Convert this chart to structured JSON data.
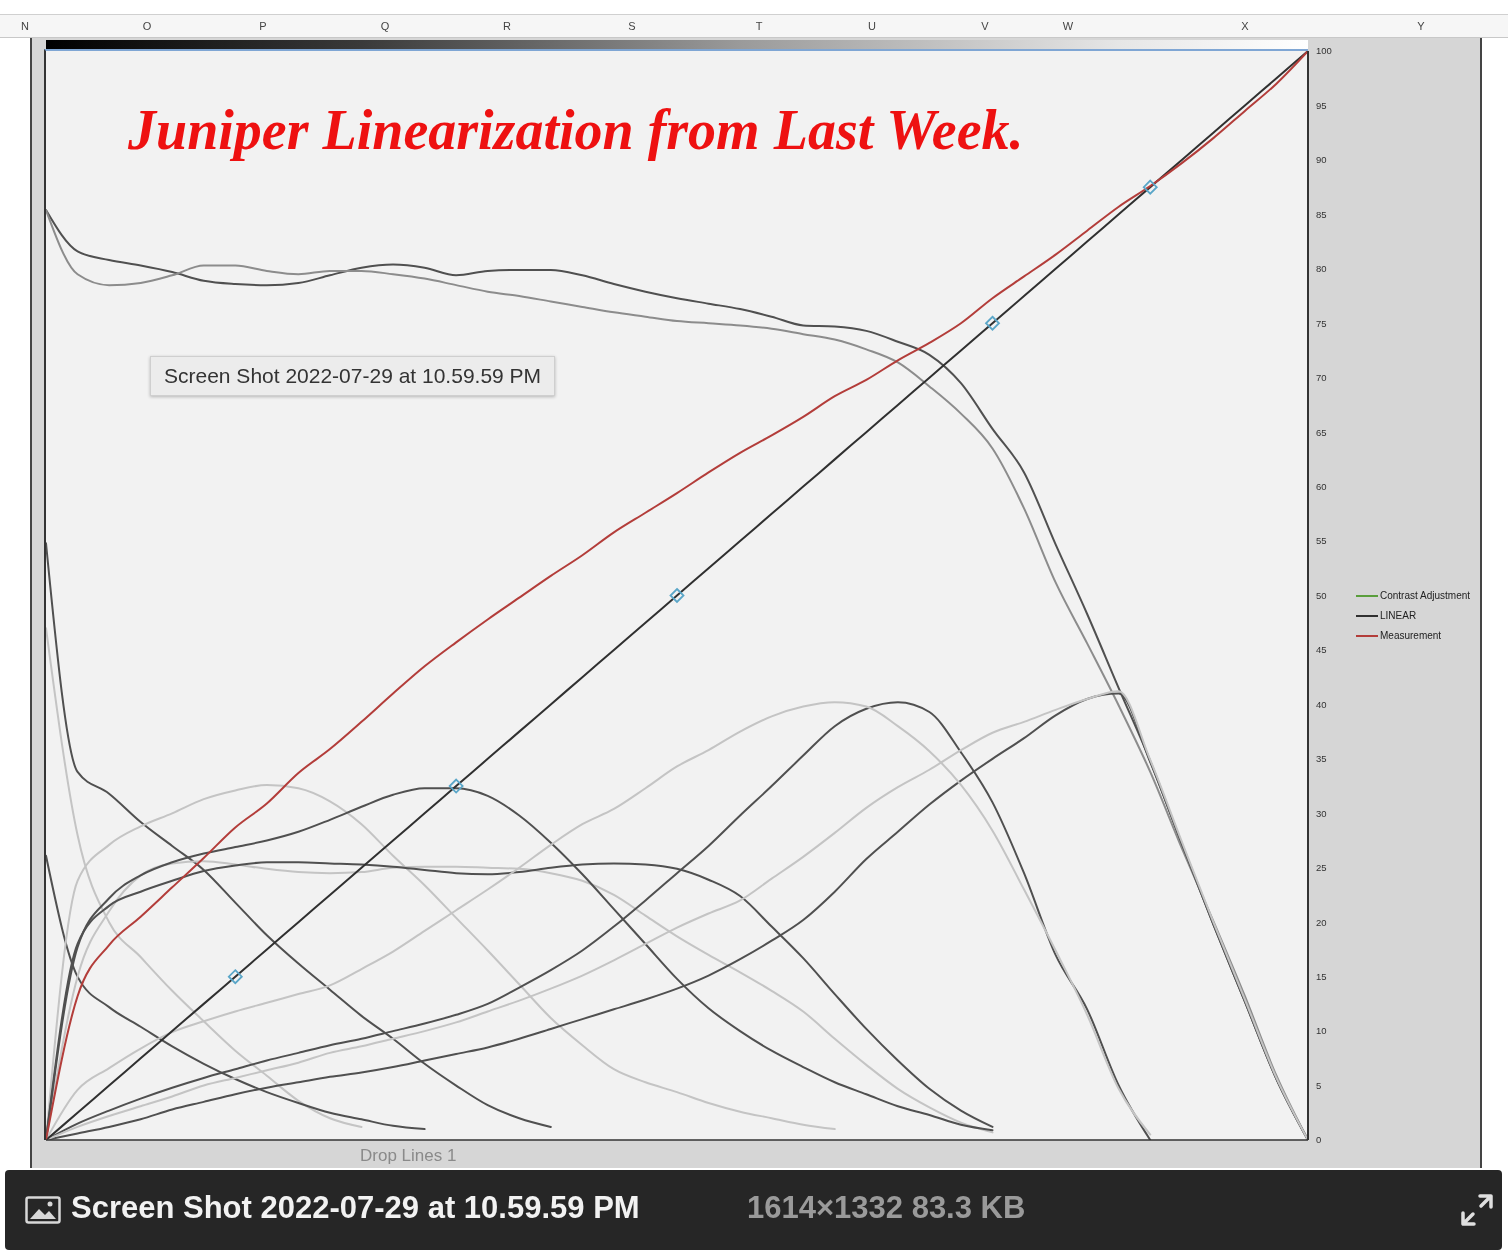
{
  "chart_data": {
    "type": "line",
    "title": "Juniper Linearization from Last Week.",
    "categories": [
      null,
      null,
      null,
      null,
      null,
      null,
      null,
      null,
      null,
      null,
      null,
      null,
      null,
      null,
      null,
      null,
      null,
      null,
      null,
      null,
      null,
      null,
      null,
      null,
      null,
      null,
      null,
      null,
      null,
      null,
      null,
      null,
      null,
      null,
      null,
      null,
      null,
      null,
      null,
      null,
      null
    ],
    "ylim": [
      0,
      100
    ],
    "yticks": [
      0,
      5,
      10,
      15,
      20,
      25,
      30,
      35,
      40,
      45,
      50,
      55,
      60,
      65,
      70,
      75,
      80,
      85,
      90,
      95,
      100
    ],
    "tick_labels": "y",
    "marker": "none",
    "legend": "right",
    "series": [
      {
        "color": "#505050",
        "values": [
          85.4,
          81.6,
          80.8,
          80.3,
          79.7,
          78.9,
          78.6,
          78.5,
          78.7,
          79.4,
          80.1,
          80.4,
          80.1,
          79.4,
          79.8,
          79.9,
          79.9,
          79.4,
          78.6,
          77.9,
          77.3,
          76.8,
          76.3,
          75.6,
          74.8,
          74.7,
          74.3,
          73.3,
          72.1,
          69.5,
          65.3,
          61.3,
          54.7,
          48.3,
          41.5,
          34.8,
          27.2,
          19.8,
          12.7,
          5.6,
          0
        ]
      },
      {
        "color": "#8c8c8c",
        "values": [
          85.4,
          79.5,
          78.5,
          78.7,
          79.4,
          80.3,
          80.3,
          79.8,
          79.5,
          79.8,
          79.8,
          79.5,
          79.1,
          78.5,
          77.9,
          77.5,
          77,
          76.5,
          76,
          75.6,
          75.2,
          75,
          74.8,
          74.5,
          74,
          73.5,
          72.6,
          71.4,
          69.2,
          66.7,
          63.5,
          58,
          51.2,
          45.6,
          39.9,
          33.8,
          26.8,
          20.1,
          13.2,
          5.9,
          0
        ]
      },
      {
        "color": "#505050",
        "values": [
          54.8,
          33.8,
          31.8,
          29.2,
          27,
          24.8,
          21.8,
          18.8,
          16.2,
          13.8,
          11.4,
          9.3,
          7,
          5,
          3.2,
          2,
          1.2,
          null,
          null,
          null,
          null,
          null,
          null,
          null,
          null,
          null,
          null,
          null,
          null,
          null,
          null,
          null,
          null,
          null,
          null,
          null,
          null,
          null,
          null,
          null,
          null
        ]
      },
      {
        "color": "#c4c4c4",
        "values": [
          47,
          28,
          20,
          16.8,
          13.7,
          10.9,
          8.2,
          5.9,
          3.6,
          2,
          1.2,
          null,
          null,
          null,
          null,
          null,
          null,
          null,
          null,
          null,
          null,
          null,
          null,
          null,
          null,
          null,
          null,
          null,
          null,
          null,
          null,
          null,
          null,
          null,
          null,
          null,
          null,
          null,
          null,
          null,
          null
        ]
      },
      {
        "color": "#505050",
        "values": [
          26.1,
          15,
          12.2,
          10.4,
          8.6,
          7,
          5.6,
          4.4,
          3.4,
          2.5,
          1.9,
          1.3,
          1,
          null,
          null,
          null,
          null,
          null,
          null,
          null,
          null,
          null,
          null,
          null,
          null,
          null,
          null,
          null,
          null,
          null,
          null,
          null,
          null,
          null,
          null,
          null,
          null,
          null,
          null,
          null,
          null
        ]
      },
      {
        "color": "#c4c4c4",
        "values": [
          0,
          23.8,
          27.1,
          28.8,
          30,
          31.3,
          32.1,
          32.6,
          32.3,
          31.1,
          29,
          26.1,
          23.4,
          20.4,
          17.4,
          14.3,
          11.2,
          8.7,
          6.5,
          5.3,
          4.4,
          3.4,
          2.6,
          2,
          1.4,
          1,
          null,
          null,
          null,
          null,
          null,
          null,
          null,
          null,
          null,
          null,
          null,
          null,
          null,
          null,
          null
        ]
      },
      {
        "color": "#c4c4c4",
        "values": [
          0,
          15,
          21,
          24.3,
          25.4,
          25.6,
          25.3,
          24.9,
          24.6,
          24.5,
          24.6,
          25,
          25.1,
          25.1,
          25,
          24.9,
          24.5,
          23.8,
          22.5,
          20.6,
          18.7,
          17,
          15.4,
          13.7,
          11.8,
          9.3,
          6.9,
          4.7,
          3,
          1.6,
          0.7,
          null,
          null,
          null,
          null,
          null,
          null,
          null,
          null,
          null,
          null
        ]
      },
      {
        "color": "#505050",
        "values": [
          0,
          17.7,
          22.2,
          24.3,
          25.5,
          26.3,
          26.9,
          27.5,
          28.3,
          29.4,
          30.6,
          31.7,
          32.3,
          32.3,
          31.6,
          29.8,
          27.3,
          24.4,
          21.2,
          18,
          14.8,
          12.1,
          10,
          8.2,
          6.7,
          5.3,
          4.2,
          3.1,
          2.3,
          1.4,
          0.9,
          null,
          null,
          null,
          null,
          null,
          null,
          null,
          null,
          null,
          null
        ]
      },
      {
        "color": "#505050",
        "values": [
          0,
          18,
          21.5,
          22.8,
          23.8,
          24.7,
          25.2,
          25.5,
          25.5,
          25.4,
          25.3,
          25.1,
          24.8,
          24.5,
          24.4,
          24.6,
          25,
          25.3,
          25.4,
          25.3,
          24.9,
          23.9,
          22.4,
          19.6,
          16.7,
          13.4,
          10.2,
          7.3,
          4.7,
          2.7,
          1.2,
          null,
          null,
          null,
          null,
          null,
          null,
          null,
          null,
          null,
          null
        ]
      },
      {
        "color": "#505050",
        "values": [
          0,
          1.5,
          2.7,
          3.8,
          4.8,
          5.7,
          6.5,
          7.3,
          8,
          8.7,
          9.3,
          10,
          10.7,
          11.5,
          12.5,
          14,
          15.6,
          17.4,
          19.6,
          22,
          24.5,
          27,
          29.8,
          32.5,
          35.3,
          38,
          39.6,
          40.2,
          39.3,
          35.6,
          31,
          24.5,
          17,
          12,
          5,
          0,
          null,
          null,
          null,
          null,
          null
        ]
      },
      {
        "color": "#505050",
        "values": [
          0,
          0.6,
          1.2,
          1.9,
          2.8,
          3.5,
          4.2,
          4.8,
          5.3,
          5.8,
          6.2,
          6.7,
          7.3,
          7.9,
          8.5,
          9.3,
          10.2,
          11.1,
          12,
          12.9,
          13.9,
          15.1,
          16.6,
          18.3,
          20.2,
          22.8,
          25.8,
          28.3,
          30.8,
          33,
          35,
          36.9,
          39,
          40.5,
          41,
          34.7,
          27.2,
          19.8,
          12.7,
          5.6,
          0
        ]
      },
      {
        "color": "#c4c4c4",
        "values": [
          0,
          4.6,
          6.6,
          8.4,
          9.9,
          10.9,
          11.8,
          12.6,
          13.4,
          14.2,
          15.7,
          17.3,
          19.2,
          21.1,
          23,
          25,
          27.1,
          29,
          30.4,
          32.3,
          34.3,
          35.8,
          37.5,
          38.9,
          39.8,
          40.2,
          39.8,
          38,
          35.7,
          32.6,
          28.4,
          23,
          17.4,
          11.5,
          4.7,
          0.5,
          null,
          null,
          null,
          null,
          null
        ]
      },
      {
        "color": "#c4c4c4",
        "values": [
          0,
          1.2,
          2.2,
          3.1,
          4,
          5,
          5.7,
          6.4,
          7.1,
          8,
          8.6,
          9.3,
          10,
          10.8,
          11.8,
          12.8,
          13.9,
          15.1,
          16.5,
          18,
          19.5,
          20.8,
          22,
          24,
          26,
          28.2,
          30.5,
          32.4,
          34,
          35.8,
          37.4,
          38.4,
          39.5,
          40.5,
          41.2,
          34.9,
          27.4,
          20,
          12.9,
          5.7,
          0
        ]
      },
      {
        "name": "Contrast Adjustment",
        "color": "#5a9e3c",
        "values": [
          null,
          null,
          null,
          null,
          null,
          null,
          null,
          null,
          null,
          null,
          null,
          null,
          null,
          null,
          null,
          null,
          null,
          null,
          null,
          null,
          null,
          null,
          null,
          null,
          null,
          null,
          null,
          null,
          null,
          null,
          null,
          null,
          null,
          null,
          null,
          null,
          null,
          null,
          null,
          null,
          null
        ]
      },
      {
        "name": "LINEAR",
        "color": "#303030",
        "values": [
          0,
          2.5,
          5,
          7.5,
          10,
          12.5,
          15,
          17.5,
          20,
          22.5,
          25,
          27.5,
          30,
          32.5,
          35,
          37.5,
          40,
          42.5,
          45,
          47.5,
          50,
          52.5,
          55,
          57.5,
          60,
          62.5,
          65,
          67.5,
          70,
          72.5,
          75,
          77.5,
          80,
          82.5,
          85,
          87.5,
          90,
          92.5,
          95,
          97.5,
          100
        ]
      },
      {
        "name": "Measurement",
        "color": "#b33d3a",
        "values": [
          0,
          13.2,
          17.9,
          20.5,
          23.2,
          25.9,
          28.7,
          30.9,
          33.7,
          35.9,
          38.4,
          41,
          43.5,
          45.7,
          47.8,
          49.8,
          51.8,
          53.7,
          55.8,
          57.6,
          59.4,
          61.3,
          63.1,
          64.7,
          66.4,
          68.3,
          69.8,
          71.6,
          73.2,
          75,
          77.3,
          79.3,
          81.3,
          83.5,
          85.7,
          87.6,
          89.7,
          92,
          94.5,
          97,
          100
        ]
      },
      {
        "type": "scatter",
        "marker": "diamond",
        "color": "#5aa6c8",
        "values": [
          null,
          null,
          null,
          null,
          null,
          null,
          15,
          null,
          null,
          null,
          null,
          null,
          null,
          32.5,
          null,
          null,
          null,
          null,
          null,
          null,
          50,
          null,
          null,
          null,
          null,
          null,
          null,
          null,
          null,
          null,
          75,
          null,
          null,
          null,
          null,
          87.5,
          null,
          null,
          null,
          null,
          null
        ]
      }
    ],
    "annotations": [
      "N",
      "O",
      "P",
      "Q",
      "R",
      "S",
      "T",
      "U",
      "V",
      "W",
      "X",
      "Y",
      "Screen Shot 2022-07-29 at 10.59.59 PM",
      "Screen Shot 2022-07-29 at 10.59.59 PM",
      "1614×1332 83.3 KB",
      "Drop Lines 1"
    ]
  }
}
